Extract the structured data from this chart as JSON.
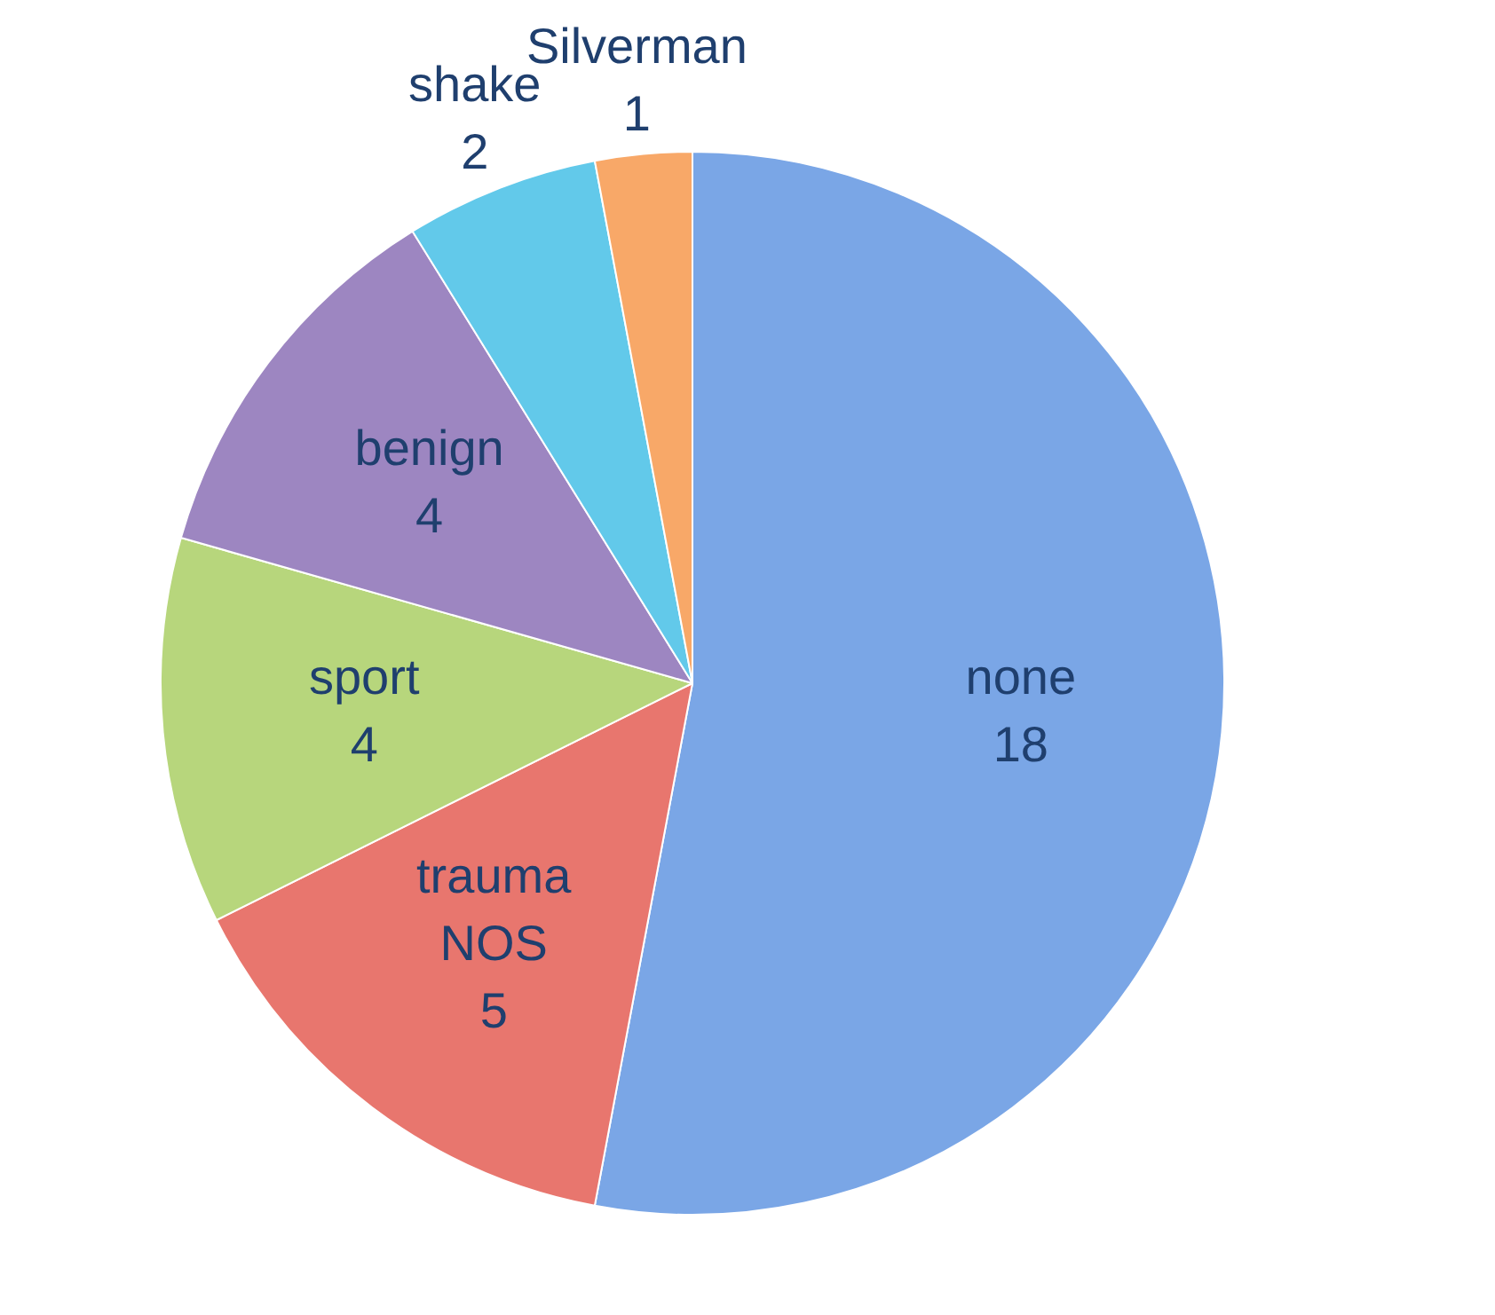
{
  "chart_data": {
    "type": "pie",
    "categories": [
      "none",
      "trauma NOS",
      "sport",
      "benign",
      "shake",
      "Silverman"
    ],
    "values": [
      18,
      5,
      4,
      4,
      2,
      1
    ],
    "colors": [
      "#7aa6e6",
      "#e8766e",
      "#b7d67c",
      "#9d86c1",
      "#62c9ea",
      "#f8a868"
    ],
    "data_labels": true,
    "legend": false
  }
}
